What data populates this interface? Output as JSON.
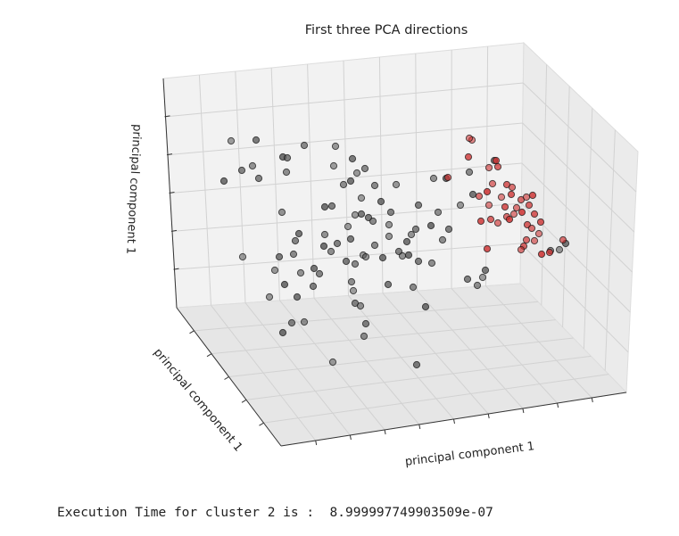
{
  "chart_data": {
    "type": "scatter",
    "dimensions": 3,
    "title": "First three PCA directions",
    "xlabel": "principal component 1",
    "ylabel": "principal component 1",
    "zlabel": "principal component 1",
    "tick_labels_shown": false,
    "grid": true,
    "legend": "none",
    "series": [
      {
        "color": "#555555",
        "points_screen_estimate": [
          [
            259,
            158
          ],
          [
            287,
            157
          ],
          [
            341,
            163
          ],
          [
            376,
            164
          ],
          [
            251,
            203
          ],
          [
            271,
            191
          ],
          [
            283,
            186
          ],
          [
            317,
            176
          ],
          [
            322,
            177
          ],
          [
            321,
            193
          ],
          [
            374,
            186
          ],
          [
            395,
            178
          ],
          [
            409,
            189
          ],
          [
            400,
            194
          ],
          [
            393,
            203
          ],
          [
            290,
            200
          ],
          [
            316,
            238
          ],
          [
            364,
            232
          ],
          [
            372,
            231
          ],
          [
            385,
            207
          ],
          [
            405,
            222
          ],
          [
            405,
            240
          ],
          [
            420,
            208
          ],
          [
            444,
            207
          ],
          [
            427,
            226
          ],
          [
            438,
            238
          ],
          [
            486,
            200
          ],
          [
            500,
            200
          ],
          [
            469,
            230
          ],
          [
            491,
            238
          ],
          [
            398,
            241
          ],
          [
            413,
            244
          ],
          [
            418,
            248
          ],
          [
            436,
            252
          ],
          [
            335,
            262
          ],
          [
            331,
            270
          ],
          [
            364,
            263
          ],
          [
            363,
            276
          ],
          [
            378,
            273
          ],
          [
            371,
            282
          ],
          [
            390,
            254
          ],
          [
            393,
            268
          ],
          [
            420,
            275
          ],
          [
            436,
            265
          ],
          [
            456,
            271
          ],
          [
            466,
            257
          ],
          [
            461,
            263
          ],
          [
            483,
            253
          ],
          [
            503,
            257
          ],
          [
            496,
            269
          ],
          [
            407,
            286
          ],
          [
            388,
            293
          ],
          [
            398,
            296
          ],
          [
            410,
            288
          ],
          [
            429,
            289
          ],
          [
            447,
            282
          ],
          [
            451,
            287
          ],
          [
            458,
            286
          ],
          [
            469,
            293
          ],
          [
            484,
            295
          ],
          [
            272,
            288
          ],
          [
            313,
            288
          ],
          [
            329,
            285
          ],
          [
            308,
            303
          ],
          [
            352,
            301
          ],
          [
            358,
            307
          ],
          [
            337,
            306
          ],
          [
            319,
            319
          ],
          [
            351,
            321
          ],
          [
            394,
            316
          ],
          [
            396,
            326
          ],
          [
            435,
            319
          ],
          [
            463,
            322
          ],
          [
            302,
            333
          ],
          [
            333,
            333
          ],
          [
            398,
            340
          ],
          [
            404,
            343
          ],
          [
            477,
            344
          ],
          [
            524,
            313
          ],
          [
            535,
            320
          ],
          [
            541,
            311
          ],
          [
            544,
            303
          ],
          [
            617,
            281
          ],
          [
            627,
            280
          ],
          [
            634,
            273
          ],
          [
            327,
            362
          ],
          [
            341,
            361
          ],
          [
            317,
            373
          ],
          [
            410,
            363
          ],
          [
            408,
            377
          ],
          [
            373,
            406
          ],
          [
            467,
            409
          ],
          [
            526,
            193
          ],
          [
            516,
            230
          ],
          [
            530,
            218
          ],
          [
            554,
            180
          ]
        ]
      },
      {
        "color": "#cc2b2b",
        "points_screen_estimate": [
          [
            529,
            157
          ],
          [
            525,
            176
          ],
          [
            502,
            199
          ],
          [
            548,
            188
          ],
          [
            556,
            180
          ],
          [
            558,
            187
          ],
          [
            552,
            206
          ],
          [
            546,
            215
          ],
          [
            568,
            207
          ],
          [
            574,
            210
          ],
          [
            562,
            221
          ],
          [
            573,
            218
          ],
          [
            584,
            224
          ],
          [
            590,
            221
          ],
          [
            597,
            219
          ],
          [
            593,
            230
          ],
          [
            579,
            233
          ],
          [
            585,
            238
          ],
          [
            599,
            240
          ],
          [
            537,
            220
          ],
          [
            548,
            230
          ],
          [
            566,
            232
          ],
          [
            568,
            243
          ],
          [
            576,
            240
          ],
          [
            539,
            248
          ],
          [
            550,
            246
          ],
          [
            558,
            250
          ],
          [
            571,
            246
          ],
          [
            591,
            252
          ],
          [
            596,
            256
          ],
          [
            604,
            262
          ],
          [
            606,
            249
          ],
          [
            590,
            269
          ],
          [
            599,
            270
          ],
          [
            546,
            279
          ],
          [
            587,
            276
          ],
          [
            584,
            280
          ],
          [
            607,
            285
          ],
          [
            616,
            283
          ],
          [
            631,
            269
          ],
          [
            526,
            155
          ]
        ]
      }
    ]
  },
  "output": {
    "text": "Execution Time for cluster 2 is :  8.999997749903509e-07"
  }
}
